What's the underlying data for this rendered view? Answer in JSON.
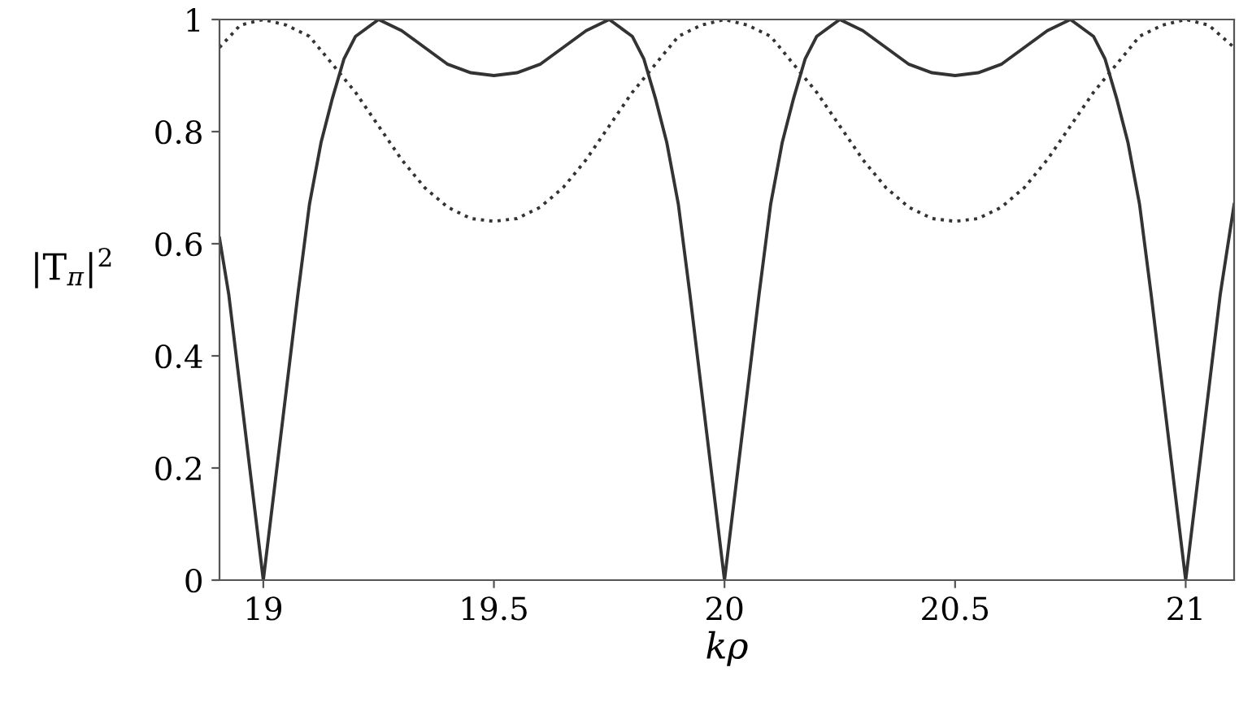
{
  "chart_data": {
    "type": "line",
    "xlabel": "kρ",
    "ylabel": "|T$_{π}$|$^{2}$",
    "xlim": [
      18.905,
      21.105
    ],
    "ylim": [
      0,
      1
    ],
    "xticks": [
      19,
      19.5,
      20,
      20.5,
      21
    ],
    "yticks": [
      0,
      0.2,
      0.4,
      0.6,
      0.8,
      1
    ],
    "grid": false,
    "legend": false,
    "series": [
      {
        "color": "#333333",
        "line_style": "solid",
        "x": [
          18.905,
          18.925,
          18.95,
          18.975,
          19,
          19.025,
          19.05,
          19.075,
          19.1,
          19.125,
          19.15,
          19.175,
          19.2,
          19.25,
          19.3,
          19.35,
          19.4,
          19.45,
          19.5,
          19.55,
          19.6,
          19.65,
          19.7,
          19.75,
          19.8,
          19.825,
          19.85,
          19.875,
          19.9,
          19.925,
          19.95,
          19.975,
          20,
          20.025,
          20.05,
          20.075,
          20.1,
          20.125,
          20.15,
          20.175,
          20.2,
          20.25,
          20.3,
          20.35,
          20.4,
          20.45,
          20.5,
          20.55,
          20.6,
          20.65,
          20.7,
          20.75,
          20.8,
          20.825,
          20.85,
          20.875,
          20.9,
          20.925,
          20.95,
          20.975,
          21,
          21.025,
          21.05,
          21.075,
          21.105
        ],
        "values": [
          0.61,
          0.51,
          0.34,
          0.17,
          0,
          0.17,
          0.34,
          0.51,
          0.67,
          0.78,
          0.86,
          0.93,
          0.97,
          1.0,
          0.98,
          0.95,
          0.92,
          0.905,
          0.9,
          0.905,
          0.92,
          0.95,
          0.98,
          1.0,
          0.97,
          0.93,
          0.86,
          0.78,
          0.67,
          0.51,
          0.34,
          0.17,
          0,
          0.17,
          0.34,
          0.51,
          0.67,
          0.78,
          0.86,
          0.93,
          0.97,
          1.0,
          0.98,
          0.95,
          0.92,
          0.905,
          0.9,
          0.905,
          0.92,
          0.95,
          0.98,
          1.0,
          0.97,
          0.93,
          0.86,
          0.78,
          0.67,
          0.51,
          0.34,
          0.17,
          0,
          0.17,
          0.34,
          0.51,
          0.67
        ]
      },
      {
        "color": "#333333",
        "line_style": "dotted",
        "x": [
          18.905,
          18.95,
          19,
          19.05,
          19.1,
          19.15,
          19.2,
          19.25,
          19.3,
          19.35,
          19.4,
          19.45,
          19.5,
          19.55,
          19.6,
          19.65,
          19.7,
          19.75,
          19.8,
          19.85,
          19.9,
          19.95,
          20,
          20.05,
          20.1,
          20.15,
          20.2,
          20.25,
          20.3,
          20.35,
          20.4,
          20.45,
          20.5,
          20.55,
          20.6,
          20.65,
          20.7,
          20.75,
          20.8,
          20.85,
          20.9,
          20.95,
          21,
          21.05,
          21.105
        ],
        "values": [
          0.95,
          0.99,
          1.0,
          0.99,
          0.97,
          0.92,
          0.87,
          0.81,
          0.75,
          0.7,
          0.665,
          0.645,
          0.64,
          0.645,
          0.665,
          0.7,
          0.75,
          0.81,
          0.87,
          0.92,
          0.97,
          0.99,
          1.0,
          0.99,
          0.97,
          0.92,
          0.87,
          0.81,
          0.75,
          0.7,
          0.665,
          0.645,
          0.64,
          0.645,
          0.665,
          0.7,
          0.75,
          0.81,
          0.87,
          0.92,
          0.97,
          0.99,
          1.0,
          0.99,
          0.95
        ]
      }
    ]
  }
}
